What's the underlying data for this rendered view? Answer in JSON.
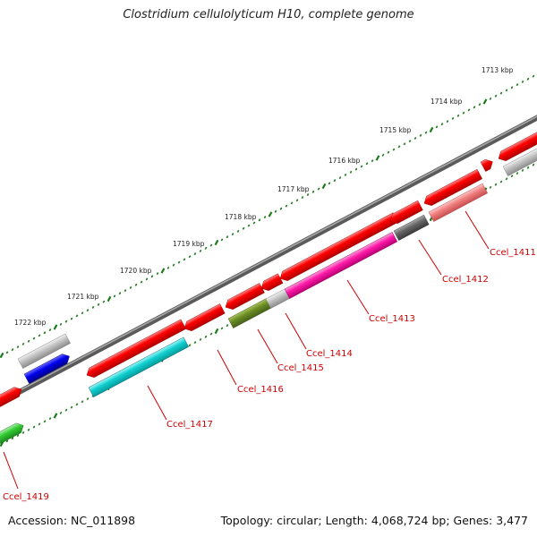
{
  "title": "Clostridium cellulolyticum H10, complete genome",
  "accession": "Accession: NC_011898",
  "topology": "Topology: circular; Length: 4,068,724 bp; Genes: 3,477",
  "colors": {
    "backbone": "#808080",
    "tick": "#1a7a1a",
    "label": "#cc0000",
    "red": "#ff0000",
    "cyan": "#00cccc",
    "magenta": "#ff1aa8",
    "olive": "#6b8e23",
    "grey": "#bbbbbb",
    "darkgrey": "#666666",
    "pink": "#f08080",
    "blue": "#0000ee",
    "green": "#33cc33"
  },
  "scale_labels": [
    "1713 kbp",
    "1714 kbp",
    "1715 kbp",
    "1716 kbp",
    "1717 kbp",
    "1718 kbp",
    "1719 kbp",
    "1720 kbp",
    "1721 kbp",
    "1722 kbp"
  ],
  "gene_labels": [
    "Ccel_1411",
    "Ccel_1412",
    "Ccel_1413",
    "Ccel_1414",
    "Ccel_1415",
    "Ccel_1416",
    "Ccel_1417",
    "Ccel_1419"
  ]
}
